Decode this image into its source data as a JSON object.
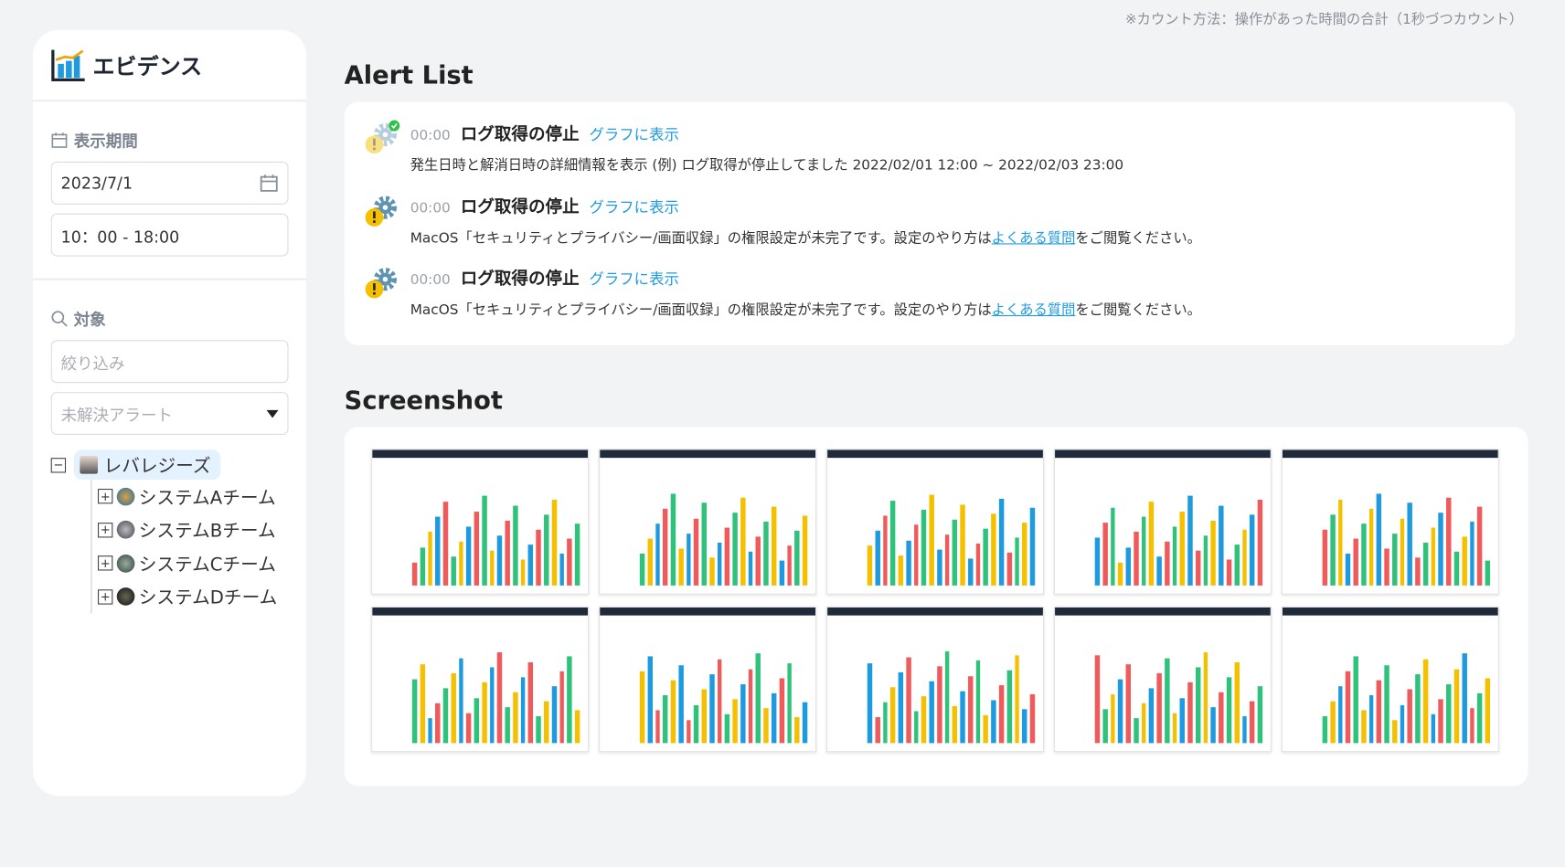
{
  "note": "※カウント方法：操作があった時間の合計（1秒づつカウント）",
  "sidebar": {
    "title": "エビデンス",
    "period_label": "表示期間",
    "date_value": "2023/7/1",
    "time_value": "10：00 - 18:00",
    "target_label": "対象",
    "filter_placeholder": "絞り込み",
    "alert_select": "未解決アラート",
    "tree": {
      "root": "レバレジーズ",
      "children": [
        "システムAチーム",
        "システムBチーム",
        "システムCチーム",
        "システムDチーム"
      ]
    }
  },
  "alerts": {
    "heading": "Alert List",
    "items": [
      {
        "time": "00:00",
        "title": "ログ取得の停止",
        "link": "グラフに表示",
        "message": "発生日時と解消日時の詳細情報を表示 (例) ログ取得が停止してました 2022/02/01 12:00 ~ 2022/02/03 23:00",
        "resolved": true
      },
      {
        "time": "00:00",
        "title": "ログ取得の停止",
        "link": "グラフに表示",
        "message_pre": "MacOS「セキュリティとプライバシー/画面収録」の権限設定が未完了です。設定のやり方は",
        "message_link": "よくある質問",
        "message_post": "をご閲覧ください。",
        "resolved": false
      },
      {
        "time": "00:00",
        "title": "ログ取得の停止",
        "link": "グラフに表示",
        "message_pre": "MacOS「セキュリティとプライバシー/画面収録」の権限設定が未完了です。設定のやり方は",
        "message_link": "よくある質問",
        "message_post": "をご閲覧ください。",
        "resolved": false
      }
    ]
  },
  "screenshots": {
    "heading": "Screenshot",
    "count": 10
  },
  "colors": {
    "accent": "#1e9be0",
    "warning": "#f5c000",
    "ok": "#2ec24a"
  }
}
